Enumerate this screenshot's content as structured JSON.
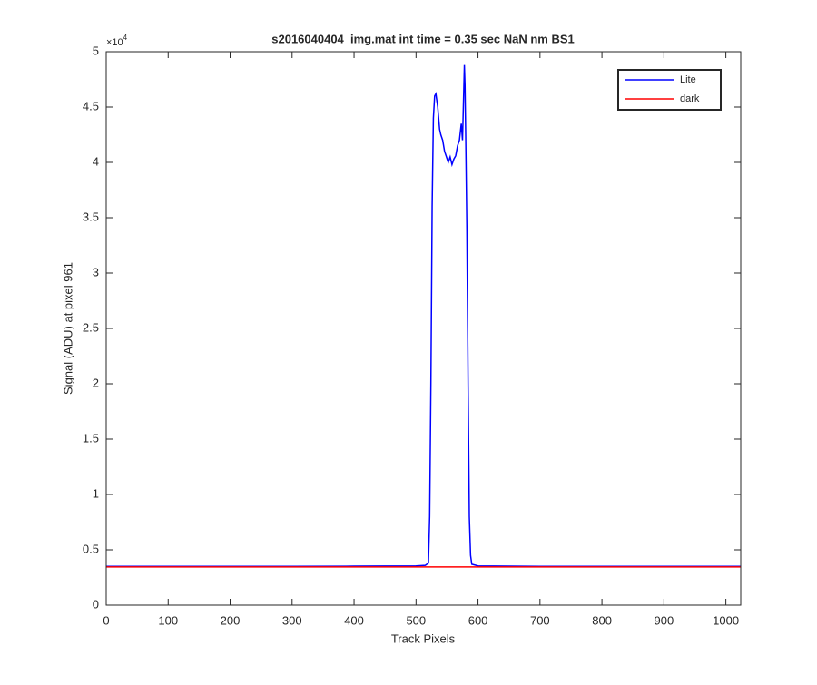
{
  "chart_data": {
    "type": "line",
    "title": "s2016040404_img.mat int time = 0.35 sec  NaN nm BS1",
    "xlabel": "Track Pixels",
    "ylabel": "Signal (ADU) at pixel 961",
    "y_multiplier": {
      "base": "×10",
      "exponent": "4"
    },
    "x": [
      0,
      100,
      200,
      300,
      400,
      500,
      515,
      520,
      522,
      524,
      526,
      528,
      530,
      532,
      535,
      538,
      540,
      543,
      546,
      549,
      552,
      555,
      558,
      561,
      564,
      567,
      570,
      573,
      575,
      577,
      578,
      579,
      580,
      582,
      584,
      586,
      588,
      590,
      600,
      700,
      800,
      900,
      1000,
      1024
    ],
    "series": [
      {
        "name": "Lite",
        "color": "#0000ff",
        "values": [
          3500,
          3500,
          3500,
          3500,
          3520,
          3550,
          3600,
          3800,
          8000,
          20000,
          36000,
          44000,
          46000,
          46200,
          45000,
          43000,
          42500,
          42000,
          41000,
          40500,
          40000,
          40500,
          39800,
          40300,
          40600,
          41500,
          42000,
          43500,
          42000,
          46500,
          48800,
          47000,
          43000,
          34000,
          20000,
          8000,
          4500,
          3700,
          3550,
          3500,
          3500,
          3500,
          3500,
          3500
        ]
      },
      {
        "name": "dark",
        "color": "#ff0000",
        "values": [
          3450,
          3450,
          3450,
          3450,
          3450,
          3450,
          3450,
          3450,
          3450,
          3450,
          3450,
          3450,
          3450,
          3450,
          3450,
          3450,
          3450,
          3450,
          3450,
          3450,
          3450,
          3450,
          3450,
          3450,
          3450,
          3450,
          3450,
          3450,
          3450,
          3450,
          3450,
          3450,
          3450,
          3450,
          3450,
          3450,
          3450,
          3450,
          3450,
          3450,
          3450,
          3450,
          3450,
          3450
        ]
      }
    ],
    "xlim": [
      0,
      1024
    ],
    "xticks": [
      0,
      100,
      200,
      300,
      400,
      500,
      600,
      700,
      800,
      900,
      1000
    ],
    "ylim": [
      0,
      50000
    ],
    "yticks": [
      {
        "value": 0,
        "label": "0"
      },
      {
        "value": 5000,
        "label": "0.5"
      },
      {
        "value": 10000,
        "label": "1"
      },
      {
        "value": 15000,
        "label": "1.5"
      },
      {
        "value": 20000,
        "label": "2"
      },
      {
        "value": 25000,
        "label": "2.5"
      },
      {
        "value": 30000,
        "label": "3"
      },
      {
        "value": 35000,
        "label": "3.5"
      },
      {
        "value": 40000,
        "label": "4"
      },
      {
        "value": 45000,
        "label": "4.5"
      },
      {
        "value": 50000,
        "label": "5"
      }
    ],
    "legend": "northeast",
    "grid": false
  }
}
